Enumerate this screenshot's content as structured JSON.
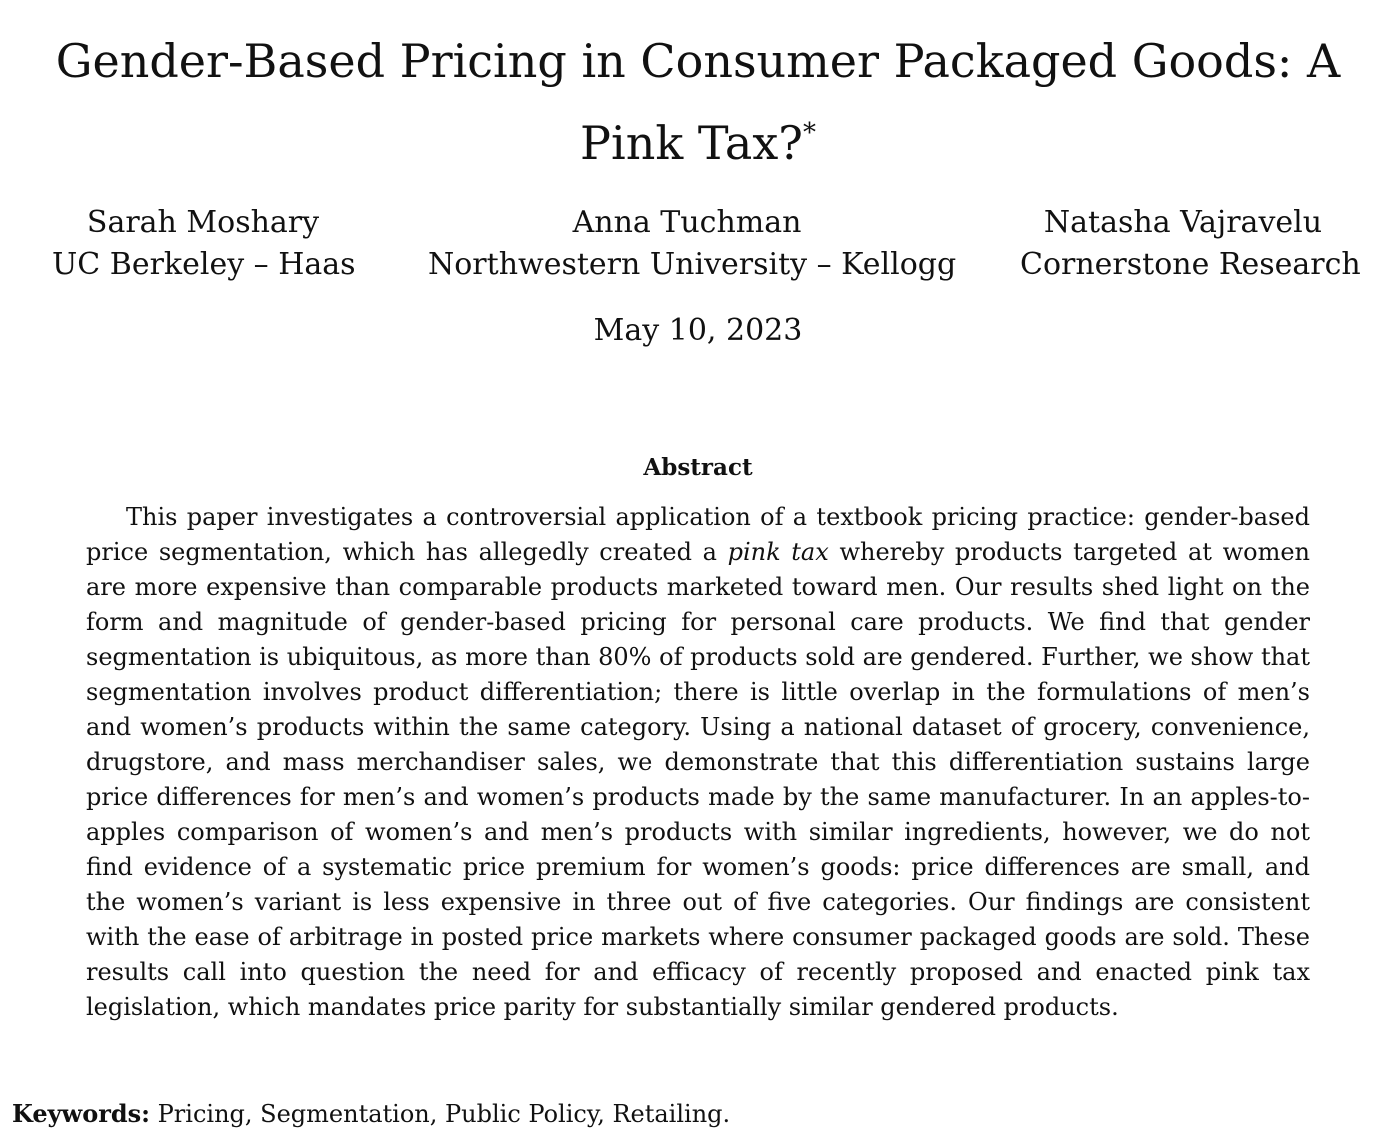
{
  "paper": {
    "title": "Gender-Based Pricing in Consumer Packaged Goods: A Pink Tax?",
    "title_footnote_mark": "*",
    "authors": [
      {
        "name": "Sarah Moshary",
        "affiliation": "UC Berkeley – Haas"
      },
      {
        "name": "Anna Tuchman",
        "affiliation": "Northwestern University – Kellogg"
      },
      {
        "name": "Natasha Vajravelu",
        "affiliation": "Cornerstone Research"
      }
    ],
    "date": "May 10, 2023"
  },
  "abstract": {
    "heading": "Abstract",
    "text_before_emphasis": "This paper investigates a controversial application of a textbook pricing practice: gender-based price segmentation, which has allegedly created a ",
    "emphasis": "pink tax",
    "text_after_emphasis": " whereby products targeted at women are more expensive than comparable products marketed toward men. Our results shed light on the form and magnitude of gender-based pricing for personal care products. We find that gender segmentation is ubiquitous, as more than 80% of products sold are gendered. Further, we show that segmentation involves product differentiation; there is little overlap in the formulations of men’s and women’s products within the same category. Using a national dataset of grocery, convenience, drugstore, and mass merchandiser sales, we demonstrate that this differentiation sustains large price differences for men’s and women’s products made by the same manufacturer. In an apples-to-apples comparison of women’s and men’s products with similar ingredients, however, we do not find evidence of a systematic price premium for women’s goods: price differences are small, and the women’s variant is less expensive in three out of five categories. Our findings are consistent with the ease of arbitrage in posted price markets where consumer packaged goods are sold. These results call into question the need for and efficacy of recently proposed and enacted pink tax legislation, which mandates price parity for substantially similar gendered products."
  },
  "keywords": {
    "label": "Keywords:",
    "value": "Pricing, Segmentation, Public Policy, Retailing."
  }
}
